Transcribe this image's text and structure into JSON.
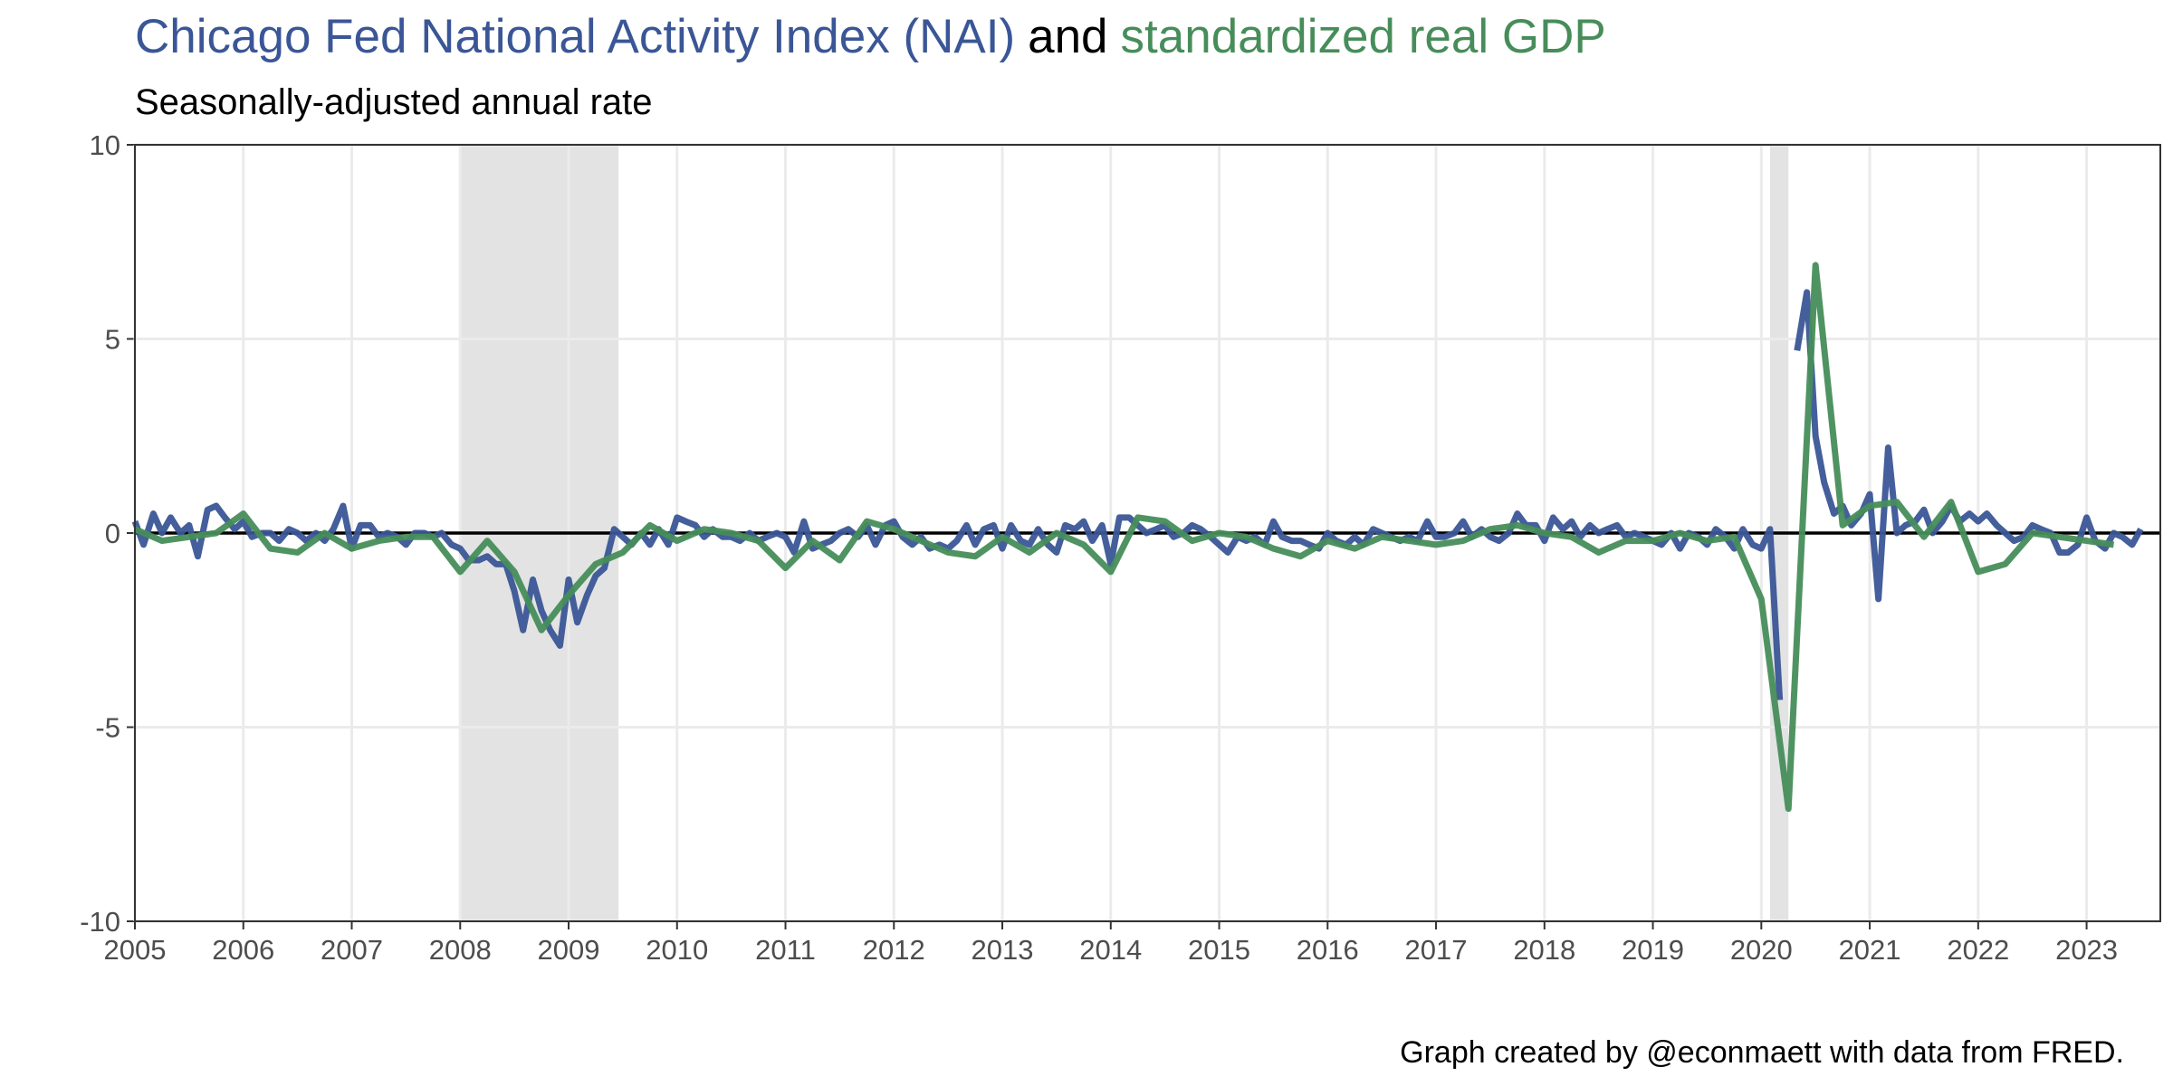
{
  "chart_data": {
    "type": "line",
    "title_connector": "and",
    "subtitle": "Seasonally-adjusted annual rate",
    "caption": "Graph created by @econmaett with data from FRED.",
    "xlim": [
      2005,
      2023.68
    ],
    "ylim": [
      -10,
      10
    ],
    "xticks": [
      2005,
      2006,
      2007,
      2008,
      2009,
      2010,
      2011,
      2012,
      2013,
      2014,
      2015,
      2016,
      2017,
      2018,
      2019,
      2020,
      2021,
      2022,
      2023
    ],
    "yticks": [
      -10,
      -5,
      0,
      5,
      10
    ],
    "grid": true,
    "hline": 0,
    "recessions": [
      {
        "start": 2008.0,
        "end": 2009.46
      },
      {
        "start": 2020.08,
        "end": 2020.25
      }
    ],
    "recession_color": "#e3e3e3",
    "series": [
      {
        "name": "Chicago Fed National Activity Index (NAI)",
        "color": "#3a5696",
        "x": [
          2005.0,
          2005.08,
          2005.17,
          2005.25,
          2005.33,
          2005.42,
          2005.5,
          2005.58,
          2005.67,
          2005.75,
          2005.83,
          2005.92,
          2006.0,
          2006.08,
          2006.17,
          2006.25,
          2006.33,
          2006.42,
          2006.5,
          2006.58,
          2006.67,
          2006.75,
          2006.83,
          2006.92,
          2007.0,
          2007.08,
          2007.17,
          2007.25,
          2007.33,
          2007.42,
          2007.5,
          2007.58,
          2007.67,
          2007.75,
          2007.83,
          2007.92,
          2008.0,
          2008.08,
          2008.17,
          2008.25,
          2008.33,
          2008.42,
          2008.5,
          2008.58,
          2008.67,
          2008.75,
          2008.83,
          2008.92,
          2009.0,
          2009.08,
          2009.17,
          2009.25,
          2009.33,
          2009.42,
          2009.5,
          2009.58,
          2009.67,
          2009.75,
          2009.83,
          2009.92,
          2010.0,
          2010.08,
          2010.17,
          2010.25,
          2010.33,
          2010.42,
          2010.5,
          2010.58,
          2010.67,
          2010.75,
          2010.83,
          2010.92,
          2011.0,
          2011.08,
          2011.17,
          2011.25,
          2011.33,
          2011.42,
          2011.5,
          2011.58,
          2011.67,
          2011.75,
          2011.83,
          2011.92,
          2012.0,
          2012.08,
          2012.17,
          2012.25,
          2012.33,
          2012.42,
          2012.5,
          2012.58,
          2012.67,
          2012.75,
          2012.83,
          2012.92,
          2013.0,
          2013.08,
          2013.17,
          2013.25,
          2013.33,
          2013.42,
          2013.5,
          2013.58,
          2013.67,
          2013.75,
          2013.83,
          2013.92,
          2014.0,
          2014.08,
          2014.17,
          2014.25,
          2014.33,
          2014.42,
          2014.5,
          2014.58,
          2014.67,
          2014.75,
          2014.83,
          2014.92,
          2015.0,
          2015.08,
          2015.17,
          2015.25,
          2015.33,
          2015.42,
          2015.5,
          2015.58,
          2015.67,
          2015.75,
          2015.83,
          2015.92,
          2016.0,
          2016.08,
          2016.17,
          2016.25,
          2016.33,
          2016.42,
          2016.5,
          2016.58,
          2016.67,
          2016.75,
          2016.83,
          2016.92,
          2017.0,
          2017.08,
          2017.17,
          2017.25,
          2017.33,
          2017.42,
          2017.5,
          2017.58,
          2017.67,
          2017.75,
          2017.83,
          2017.92,
          2018.0,
          2018.08,
          2018.17,
          2018.25,
          2018.33,
          2018.42,
          2018.5,
          2018.58,
          2018.67,
          2018.75,
          2018.83,
          2018.92,
          2019.0,
          2019.08,
          2019.17,
          2019.25,
          2019.33,
          2019.42,
          2019.5,
          2019.58,
          2019.67,
          2019.75,
          2019.83,
          2019.92,
          2020.0,
          2020.08,
          2020.17,
          2020.25,
          2020.33,
          2020.42,
          2020.5,
          2020.58,
          2020.67,
          2020.75,
          2020.83,
          2020.92,
          2021.0,
          2021.08,
          2021.17,
          2021.25,
          2021.33,
          2021.42,
          2021.5,
          2021.58,
          2021.67,
          2021.75,
          2021.83,
          2021.92,
          2022.0,
          2022.08,
          2022.17,
          2022.25,
          2022.33,
          2022.42,
          2022.5,
          2022.58,
          2022.67,
          2022.75,
          2022.83,
          2022.92,
          2023.0,
          2023.08,
          2023.17,
          2023.25,
          2023.33,
          2023.42,
          2023.5
        ],
        "values": [
          0.3,
          -0.3,
          0.5,
          0.0,
          0.4,
          0.0,
          0.2,
          -0.6,
          0.6,
          0.7,
          0.4,
          0.1,
          0.3,
          -0.1,
          0.0,
          0.0,
          -0.2,
          0.1,
          0.0,
          -0.2,
          0.0,
          -0.2,
          0.1,
          0.7,
          -0.4,
          0.2,
          0.2,
          -0.1,
          0.0,
          -0.1,
          -0.3,
          0.0,
          0.0,
          -0.1,
          0.0,
          -0.3,
          -0.4,
          -0.7,
          -0.7,
          -0.6,
          -0.8,
          -0.8,
          -1.5,
          -2.5,
          -1.2,
          -2.0,
          -2.5,
          -2.9,
          -1.2,
          -2.3,
          -1.6,
          -1.1,
          -0.9,
          0.1,
          -0.1,
          -0.3,
          0.0,
          -0.3,
          0.1,
          -0.3,
          0.4,
          0.3,
          0.2,
          -0.1,
          0.1,
          -0.1,
          -0.1,
          -0.2,
          0.0,
          -0.2,
          -0.1,
          0.0,
          -0.1,
          -0.5,
          0.3,
          -0.4,
          -0.3,
          -0.2,
          0.0,
          0.1,
          -0.1,
          0.2,
          -0.3,
          0.2,
          0.3,
          -0.1,
          -0.3,
          -0.1,
          -0.4,
          -0.3,
          -0.4,
          -0.2,
          0.2,
          -0.3,
          0.1,
          0.2,
          -0.4,
          0.2,
          -0.2,
          -0.3,
          0.1,
          -0.3,
          -0.5,
          0.2,
          0.1,
          0.3,
          -0.2,
          0.2,
          -0.8,
          0.4,
          0.4,
          0.2,
          0.0,
          0.1,
          0.2,
          -0.1,
          0.0,
          0.2,
          0.1,
          -0.1,
          -0.3,
          -0.5,
          -0.1,
          -0.2,
          -0.1,
          -0.3,
          0.3,
          -0.1,
          -0.2,
          -0.2,
          -0.3,
          -0.4,
          0.0,
          -0.2,
          -0.3,
          -0.1,
          -0.3,
          0.1,
          0.0,
          -0.1,
          -0.2,
          -0.1,
          -0.2,
          0.3,
          -0.1,
          -0.1,
          0.0,
          0.3,
          -0.1,
          0.1,
          -0.1,
          -0.2,
          0.0,
          0.5,
          0.2,
          0.2,
          -0.2,
          0.4,
          0.1,
          0.3,
          -0.1,
          0.2,
          0.0,
          0.1,
          0.2,
          -0.1,
          0.0,
          -0.1,
          -0.2,
          -0.3,
          0.0,
          -0.4,
          0.0,
          -0.1,
          -0.3,
          0.1,
          -0.1,
          -0.4,
          0.1,
          -0.3,
          -0.4,
          0.1,
          -4.3,
          null,
          4.7,
          6.2,
          2.5,
          1.3,
          0.5,
          0.7,
          0.2,
          0.5,
          1.0,
          -1.7,
          2.2,
          0.0,
          0.2,
          0.3,
          0.6,
          0.0,
          0.3,
          0.7,
          0.3,
          0.5,
          0.3,
          0.5,
          0.2,
          0.0,
          -0.2,
          -0.1,
          0.2,
          0.1,
          0.0,
          -0.5,
          -0.5,
          -0.3,
          0.4,
          -0.2,
          -0.4,
          0.0,
          -0.1,
          -0.3,
          0.1
        ]
      },
      {
        "name": "standardized real GDP",
        "color": "#478d5a",
        "x": [
          2005.0,
          2005.25,
          2005.5,
          2005.75,
          2006.0,
          2006.25,
          2006.5,
          2006.75,
          2007.0,
          2007.25,
          2007.5,
          2007.75,
          2008.0,
          2008.25,
          2008.5,
          2008.75,
          2009.0,
          2009.25,
          2009.5,
          2009.75,
          2010.0,
          2010.25,
          2010.5,
          2010.75,
          2011.0,
          2011.25,
          2011.5,
          2011.75,
          2012.0,
          2012.25,
          2012.5,
          2012.75,
          2013.0,
          2013.25,
          2013.5,
          2013.75,
          2014.0,
          2014.25,
          2014.5,
          2014.75,
          2015.0,
          2015.25,
          2015.5,
          2015.75,
          2016.0,
          2016.25,
          2016.5,
          2016.75,
          2017.0,
          2017.25,
          2017.5,
          2017.75,
          2018.0,
          2018.25,
          2018.5,
          2018.75,
          2019.0,
          2019.25,
          2019.5,
          2019.75,
          2020.0,
          2020.25,
          2020.5,
          2020.75,
          2021.0,
          2021.25,
          2021.5,
          2021.75,
          2022.0,
          2022.25,
          2022.5,
          2022.75,
          2023.0,
          2023.25
        ],
        "values": [
          0.1,
          -0.2,
          -0.1,
          0.0,
          0.5,
          -0.4,
          -0.5,
          0.0,
          -0.4,
          -0.2,
          -0.1,
          -0.1,
          -1.0,
          -0.2,
          -1.0,
          -2.5,
          -1.6,
          -0.8,
          -0.5,
          0.2,
          -0.2,
          0.1,
          0.0,
          -0.2,
          -0.9,
          -0.2,
          -0.7,
          0.3,
          0.1,
          -0.2,
          -0.5,
          -0.6,
          -0.1,
          -0.5,
          0.0,
          -0.3,
          -1.0,
          0.4,
          0.3,
          -0.2,
          0.0,
          -0.1,
          -0.4,
          -0.6,
          -0.2,
          -0.4,
          -0.1,
          -0.2,
          -0.3,
          -0.2,
          0.1,
          0.2,
          0.0,
          -0.1,
          -0.5,
          -0.2,
          -0.2,
          0.0,
          -0.2,
          -0.1,
          -1.7,
          -7.1,
          6.9,
          0.2,
          0.7,
          0.8,
          -0.1,
          0.8,
          -1.0,
          -0.8,
          0.0,
          -0.1,
          -0.2,
          -0.3
        ]
      }
    ]
  }
}
